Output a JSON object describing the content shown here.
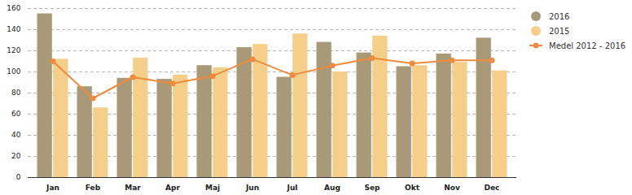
{
  "chart_data": {
    "type": "bar",
    "categories": [
      "Jan",
      "Feb",
      "Mar",
      "Apr",
      "Maj",
      "Jun",
      "Jul",
      "Aug",
      "Sep",
      "Okt",
      "Nov",
      "Dec"
    ],
    "series": [
      {
        "name": "2016",
        "color": "#a89a78",
        "values": [
          155,
          86,
          94,
          93,
          106,
          123,
          95,
          128,
          118,
          105,
          117,
          132
        ]
      },
      {
        "name": "2015",
        "color": "#f5cf8a",
        "values": [
          112,
          66,
          113,
          97,
          104,
          126,
          136,
          100,
          134,
          106,
          109,
          101
        ]
      },
      {
        "name": "Medel 2012 - 2016",
        "color": "#f08a3c",
        "type": "line",
        "marker": "circle",
        "values": [
          110,
          75,
          95,
          89,
          96,
          112,
          97,
          106,
          113,
          108,
          111,
          111
        ]
      }
    ],
    "ylim": [
      0,
      160
    ],
    "yticks": [
      0,
      20,
      40,
      60,
      80,
      100,
      120,
      140,
      160
    ],
    "grid": true,
    "legend": "right"
  }
}
